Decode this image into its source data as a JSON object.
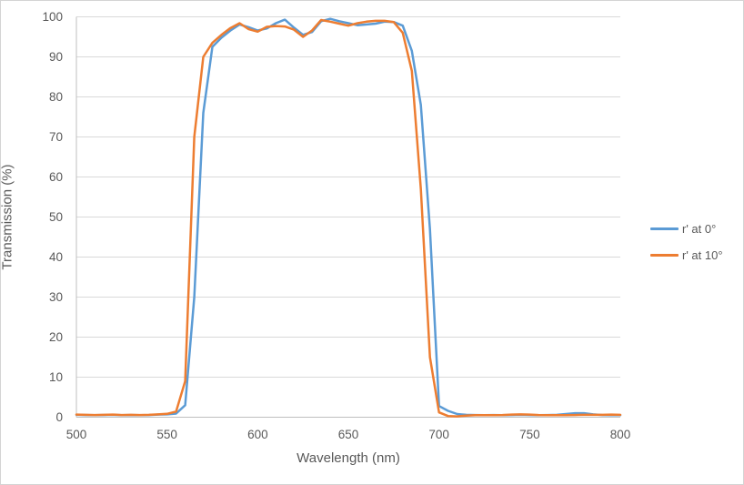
{
  "chart_data": {
    "type": "line",
    "title": "",
    "xlabel": "Wavelength (nm)",
    "ylabel": "Transmission (%)",
    "xlim": [
      500,
      800
    ],
    "ylim": [
      0,
      100
    ],
    "xticks": [
      500,
      550,
      600,
      650,
      700,
      750,
      800
    ],
    "yticks": [
      0,
      10,
      20,
      30,
      40,
      50,
      60,
      70,
      80,
      90,
      100
    ],
    "grid": "horizontal",
    "legend_position": "right",
    "x": [
      500,
      505,
      510,
      515,
      520,
      525,
      530,
      535,
      540,
      545,
      550,
      555,
      560,
      565,
      570,
      575,
      580,
      585,
      590,
      595,
      600,
      605,
      610,
      615,
      620,
      625,
      630,
      635,
      640,
      645,
      650,
      655,
      660,
      665,
      670,
      675,
      680,
      685,
      690,
      695,
      700,
      705,
      710,
      715,
      720,
      725,
      730,
      735,
      740,
      745,
      750,
      755,
      760,
      765,
      770,
      775,
      780,
      785,
      790,
      795,
      800
    ],
    "series": [
      {
        "name": "r' at 0°",
        "color": "#5B9BD5",
        "values": [
          0.6,
          0.55,
          0.5,
          0.55,
          0.6,
          0.5,
          0.55,
          0.5,
          0.55,
          0.65,
          0.7,
          0.9,
          3,
          30,
          76,
          92.5,
          94.8,
          96.6,
          98.1,
          97.4,
          96.6,
          97.1,
          98.4,
          99.3,
          97.3,
          95.5,
          96.2,
          98.9,
          99.5,
          98.9,
          98.4,
          97.9,
          98.1,
          98.3,
          98.8,
          98.7,
          97.8,
          91.5,
          78,
          47,
          2.8,
          1.6,
          0.8,
          0.6,
          0.55,
          0.5,
          0.55,
          0.5,
          0.55,
          0.6,
          0.55,
          0.5,
          0.55,
          0.6,
          0.8,
          1.0,
          1.0,
          0.7,
          0.55,
          0.5,
          0.5
        ]
      },
      {
        "name": "r' at 10°",
        "color": "#ED7D31",
        "values": [
          0.65,
          0.6,
          0.55,
          0.6,
          0.65,
          0.55,
          0.6,
          0.55,
          0.6,
          0.7,
          0.85,
          1.4,
          9,
          70,
          90,
          93.5,
          95.5,
          97.2,
          98.4,
          96.9,
          96.3,
          97.5,
          97.7,
          97.6,
          96.8,
          95.0,
          96.6,
          99.2,
          98.8,
          98.3,
          97.8,
          98.4,
          98.8,
          99.0,
          99.0,
          98.7,
          96.0,
          86.5,
          57,
          15,
          1.2,
          0.3,
          0.2,
          0.4,
          0.5,
          0.5,
          0.5,
          0.55,
          0.65,
          0.7,
          0.65,
          0.55,
          0.5,
          0.5,
          0.5,
          0.55,
          0.6,
          0.6,
          0.6,
          0.65,
          0.6
        ]
      }
    ]
  },
  "style": {
    "gridline_color": "#D9D9D9",
    "axis_line_color": "#BFBFBF",
    "tick_label_color": "#595959",
    "background_color": "#FFFFFF",
    "line_width": 2.5
  }
}
